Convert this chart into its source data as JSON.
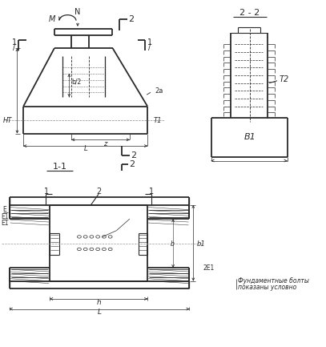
{
  "bg_color": "#ffffff",
  "line_color": "#2a2a2a",
  "figsize": [
    4.07,
    4.33
  ],
  "dpi": 100,
  "labels": {
    "22": "2 - 2",
    "11": "1-1",
    "M": "M",
    "N": "N",
    "2a": "2a",
    "HT": "HT",
    "T1": "T1",
    "T2": "T2",
    "z": "z",
    "L_top": "L",
    "B1": "B1",
    "b1": "b1",
    "h": "h",
    "L_bot": "L",
    "b_half": "b/2",
    "E1": "E",
    "note1": "Фундаментные болты",
    "note2": "показаны условно",
    "2E1": "2E1"
  }
}
